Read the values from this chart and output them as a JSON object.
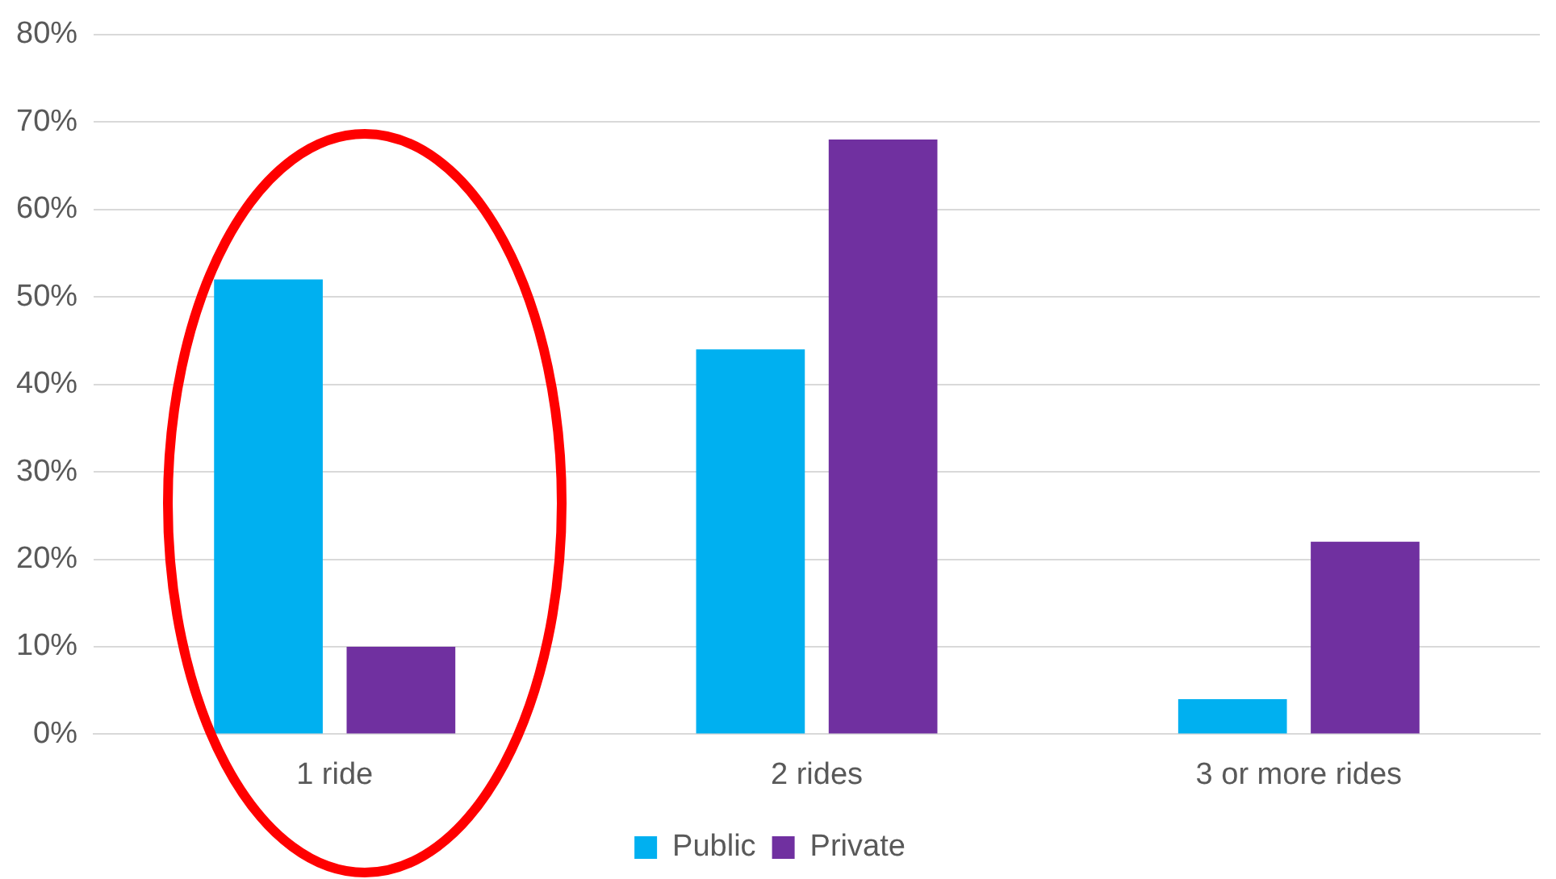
{
  "chart_data": {
    "type": "bar",
    "categories": [
      "1 ride",
      "2 rides",
      "3 or more rides"
    ],
    "series": [
      {
        "name": "Public",
        "color": "#00b0f0",
        "values": [
          52,
          44,
          4
        ]
      },
      {
        "name": "Private",
        "color": "#7030a0",
        "values": [
          10,
          68,
          22
        ]
      }
    ],
    "ylim": [
      0,
      80
    ],
    "yticks": [
      {
        "value": 0,
        "label": "0%"
      },
      {
        "value": 10,
        "label": "10%"
      },
      {
        "value": 20,
        "label": "20%"
      },
      {
        "value": 30,
        "label": "30%"
      },
      {
        "value": 40,
        "label": "40%"
      },
      {
        "value": 50,
        "label": "50%"
      },
      {
        "value": 60,
        "label": "60%"
      },
      {
        "value": 70,
        "label": "70%"
      },
      {
        "value": 80,
        "label": "80%"
      }
    ],
    "grid": "y",
    "legend": "bottom"
  }
}
